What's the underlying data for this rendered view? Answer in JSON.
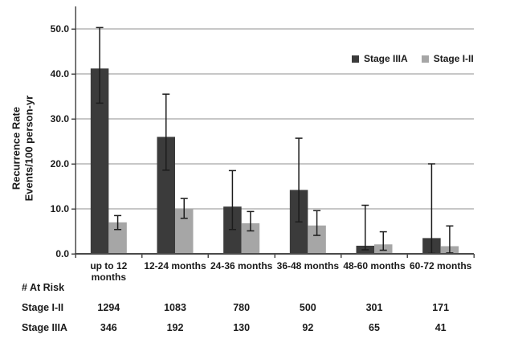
{
  "chart_data": {
    "type": "bar",
    "title": "",
    "xlabel": "",
    "ylabel_lines": [
      "Recurrence Rate",
      "Events/100 person-yr"
    ],
    "categories": [
      "up to 12 months",
      "12-24 months",
      "24-36 months",
      "36-48 months",
      "48-60 months",
      "60-72 months"
    ],
    "tick_label_lines": [
      [
        "up to 12",
        "months"
      ],
      [
        "12-24 months"
      ],
      [
        "24-36 months"
      ],
      [
        "36-48 months"
      ],
      [
        "48-60 months"
      ],
      [
        "60-72 months"
      ]
    ],
    "series": [
      {
        "name": "Stage IIIA",
        "color": "#3b3b3b",
        "values": [
          41.2,
          26.0,
          10.5,
          14.2,
          1.8,
          3.5
        ],
        "error_low": [
          33.5,
          18.6,
          5.4,
          7.1,
          0.9,
          0.1
        ],
        "error_high": [
          50.3,
          35.5,
          18.5,
          25.7,
          10.8,
          20.0
        ]
      },
      {
        "name": "Stage I-II",
        "color": "#a6a6a6",
        "values": [
          7.0,
          10.0,
          6.8,
          6.3,
          2.1,
          1.7
        ],
        "error_low": [
          5.4,
          7.9,
          5.1,
          4.1,
          0.8,
          0.2
        ],
        "error_high": [
          8.5,
          12.3,
          9.4,
          9.6,
          4.9,
          6.2
        ]
      }
    ],
    "y_ticks": [
      0,
      10,
      20,
      30,
      40,
      50
    ],
    "y_tick_labels": [
      "0.0",
      "10.0",
      "20.0",
      "30.0",
      "40.0",
      "50.0"
    ],
    "ylim": [
      0,
      55
    ],
    "grid": true,
    "legend_position": "top-right",
    "colors": {
      "background": "#ffffff",
      "gridline": "#8f8f8f",
      "axis": "#4a4a4a",
      "error_bar": "#1c1c1c",
      "text": "#1a1a1a"
    }
  },
  "risk_table": {
    "title": "# At Risk",
    "rows": [
      {
        "label": "Stage I-II",
        "values": [
          1294,
          1083,
          780,
          500,
          301,
          171
        ]
      },
      {
        "label": "Stage IIIA",
        "values": [
          346,
          192,
          130,
          92,
          65,
          41
        ]
      }
    ]
  }
}
